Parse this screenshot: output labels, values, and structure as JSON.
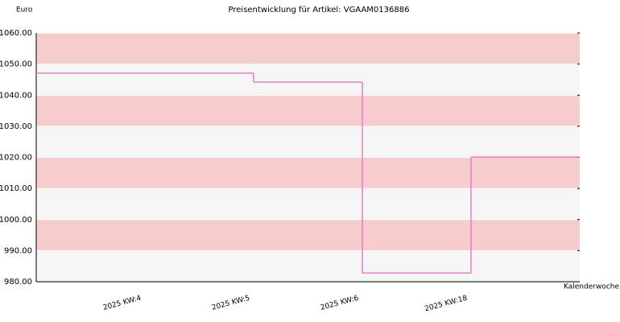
{
  "chart_data": {
    "type": "step",
    "title": "Preisentwicklung für Artikel: VGAAM0136886",
    "y_label": "Euro",
    "x_label": "Kalenderwoche",
    "categories": [
      "2025 KW:4",
      "2025 KW:5",
      "2025 KW:6",
      "2025 KW:18"
    ],
    "series": [
      {
        "color": "#ea7ccc",
        "values": [
          1047.1,
          1044.2,
          982.8,
          1020.1
        ]
      }
    ],
    "ylim": [
      980,
      1060
    ],
    "yticks": [
      {
        "value": 980,
        "label": "980.00"
      },
      {
        "value": 990,
        "label": "990.00"
      },
      {
        "value": 1000,
        "label": "1000.00"
      },
      {
        "value": 1010,
        "label": "1010.00"
      },
      {
        "value": 1020,
        "label": "1020.00"
      },
      {
        "value": 1030,
        "label": "1030.00"
      },
      {
        "value": 1040,
        "label": "1040.00"
      },
      {
        "value": 1050,
        "label": "1050.00"
      },
      {
        "value": 1060,
        "label": "1060.00"
      }
    ],
    "band_colors": [
      "#f5f5f5",
      "#f7cccc"
    ]
  }
}
